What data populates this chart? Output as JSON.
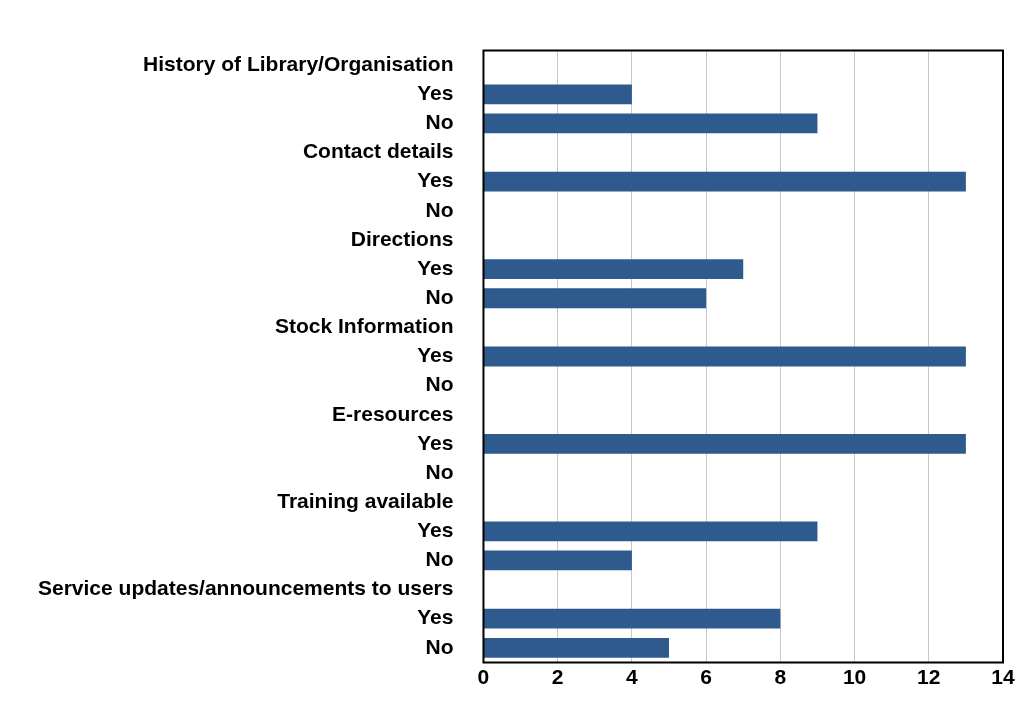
{
  "chart_data": {
    "type": "bar",
    "orientation": "horizontal",
    "categories": [
      "History of Library/Organisation",
      "Yes",
      "No",
      "Contact details",
      "Yes",
      "No",
      "Directions",
      "Yes",
      "No",
      "Stock Information",
      "Yes",
      "No",
      "E-resources",
      "Yes",
      "No",
      "Training available",
      "Yes",
      "No",
      "Service updates/announcements to users",
      "Yes",
      "No"
    ],
    "values": [
      null,
      4,
      9,
      null,
      13,
      0,
      null,
      7,
      6,
      null,
      13,
      0,
      null,
      13,
      0,
      null,
      9,
      4,
      null,
      8,
      5
    ],
    "color": "#2e5a8e",
    "xlim": [
      0,
      14
    ],
    "xticks": [
      0,
      2,
      4,
      6,
      8,
      10,
      12,
      14
    ],
    "grid": "x",
    "legend": false
  }
}
